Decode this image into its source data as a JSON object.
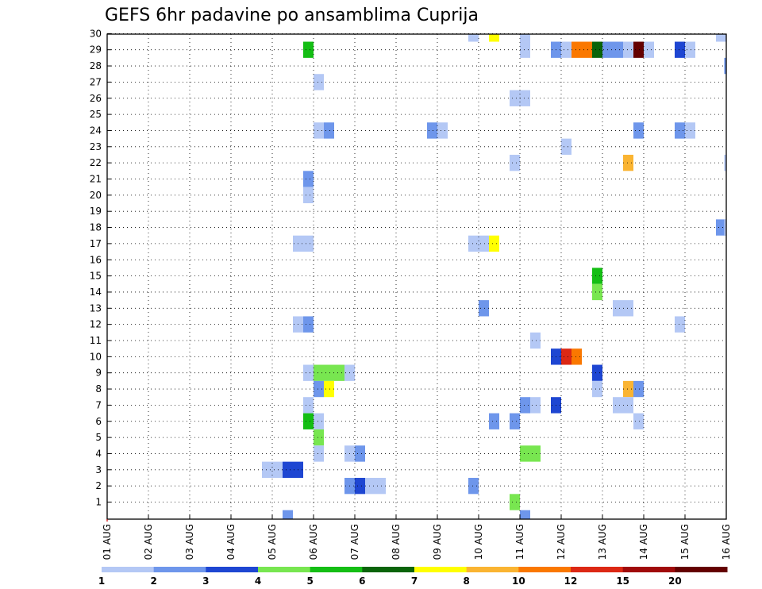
{
  "chart_data": {
    "type": "heatmap",
    "title": "GEFS 6hr padavine po ansamblima Cuprija",
    "x_tick_labels": [
      "01 AUG",
      "02 AUG",
      "03 AUG",
      "04 AUG",
      "05 AUG",
      "06 AUG",
      "07 AUG",
      "08 AUG",
      "09 AUG",
      "10 AUG",
      "11 AUG",
      "12 AUG",
      "13 AUG",
      "14 AUG",
      "15 AUG",
      "16 AUG"
    ],
    "y_tick_labels": [
      "1",
      "2",
      "3",
      "4",
      "5",
      "6",
      "7",
      "8",
      "9",
      "10",
      "11",
      "12",
      "13",
      "14",
      "15",
      "16",
      "17",
      "18",
      "19",
      "20",
      "21",
      "22",
      "23",
      "24",
      "25",
      "26",
      "27",
      "28",
      "29",
      "30"
    ],
    "xlim_days": [
      0,
      15
    ],
    "ylim": [
      0,
      30
    ],
    "grid": true,
    "time_step_hours": 6,
    "colorbar": {
      "levels": [
        "1",
        "2",
        "3",
        "4",
        "5",
        "6",
        "7",
        "8",
        "10",
        "12",
        "15",
        "20"
      ],
      "colors": [
        "#b4c8f5",
        "#6e96eb",
        "#1e46d2",
        "#78e650",
        "#14be14",
        "#0a640a",
        "#ffff00",
        "#fab432",
        "#fa7800",
        "#dc2814",
        "#a00a0a",
        "#640000"
      ]
    },
    "cells": [
      {
        "member": 30,
        "day": 8.75,
        "level": 0
      },
      {
        "member": 30,
        "day": 9.25,
        "level": 6
      },
      {
        "member": 30,
        "day": 10.0,
        "level": 0
      },
      {
        "member": 30,
        "day": 14.75,
        "level": 0
      },
      {
        "member": 29,
        "day": 4.75,
        "level": 4
      },
      {
        "member": 29,
        "day": 10.0,
        "level": 0
      },
      {
        "member": 29,
        "day": 10.75,
        "level": 1
      },
      {
        "member": 29,
        "day": 11.0,
        "level": 0
      },
      {
        "member": 29,
        "day": 11.25,
        "level": 8
      },
      {
        "member": 29,
        "day": 11.5,
        "level": 8
      },
      {
        "member": 29,
        "day": 11.75,
        "level": 5
      },
      {
        "member": 29,
        "day": 12.0,
        "level": 1
      },
      {
        "member": 29,
        "day": 12.25,
        "level": 1
      },
      {
        "member": 29,
        "day": 12.5,
        "level": 0
      },
      {
        "member": 29,
        "day": 12.75,
        "level": 11
      },
      {
        "member": 29,
        "day": 13.0,
        "level": 0
      },
      {
        "member": 29,
        "day": 13.75,
        "level": 2
      },
      {
        "member": 29,
        "day": 14.0,
        "level": 0
      },
      {
        "member": 28,
        "day": 14.95,
        "level": 1
      },
      {
        "member": 27,
        "day": 5.0,
        "level": 0
      },
      {
        "member": 26,
        "day": 9.75,
        "level": 0
      },
      {
        "member": 26,
        "day": 10.0,
        "level": 0
      },
      {
        "member": 24,
        "day": 5.0,
        "level": 0
      },
      {
        "member": 24,
        "day": 5.25,
        "level": 1
      },
      {
        "member": 24,
        "day": 7.75,
        "level": 1
      },
      {
        "member": 24,
        "day": 8.0,
        "level": 0
      },
      {
        "member": 24,
        "day": 12.75,
        "level": 1
      },
      {
        "member": 24,
        "day": 13.75,
        "level": 1
      },
      {
        "member": 24,
        "day": 14.0,
        "level": 0
      },
      {
        "member": 23,
        "day": 11.0,
        "level": 0
      },
      {
        "member": 22,
        "day": 9.75,
        "level": 0
      },
      {
        "member": 22,
        "day": 12.5,
        "level": 7
      },
      {
        "member": 22,
        "day": 14.95,
        "level": 0
      },
      {
        "member": 21,
        "day": 4.75,
        "level": 1
      },
      {
        "member": 20,
        "day": 4.75,
        "level": 0
      },
      {
        "member": 18,
        "day": 14.75,
        "level": 1
      },
      {
        "member": 18,
        "day": 14.95,
        "level": 0
      },
      {
        "member": 17,
        "day": 4.5,
        "level": 0
      },
      {
        "member": 17,
        "day": 4.75,
        "level": 0
      },
      {
        "member": 17,
        "day": 8.75,
        "level": 0
      },
      {
        "member": 17,
        "day": 9.0,
        "level": 0
      },
      {
        "member": 17,
        "day": 9.25,
        "level": 6
      },
      {
        "member": 15,
        "day": 11.75,
        "level": 4
      },
      {
        "member": 14,
        "day": 11.75,
        "level": 3
      },
      {
        "member": 13,
        "day": 9.0,
        "level": 1
      },
      {
        "member": 13,
        "day": 12.25,
        "level": 0
      },
      {
        "member": 13,
        "day": 12.5,
        "level": 0
      },
      {
        "member": 12,
        "day": 4.5,
        "level": 0
      },
      {
        "member": 12,
        "day": 4.75,
        "level": 1
      },
      {
        "member": 12,
        "day": 13.75,
        "level": 0
      },
      {
        "member": 11,
        "day": 10.25,
        "level": 0
      },
      {
        "member": 10,
        "day": 10.75,
        "level": 2
      },
      {
        "member": 10,
        "day": 11.0,
        "level": 9
      },
      {
        "member": 10,
        "day": 11.25,
        "level": 8
      },
      {
        "member": 9,
        "day": 4.75,
        "level": 0
      },
      {
        "member": 9,
        "day": 5.0,
        "level": 3
      },
      {
        "member": 9,
        "day": 5.25,
        "level": 3
      },
      {
        "member": 9,
        "day": 5.5,
        "level": 3
      },
      {
        "member": 9,
        "day": 5.75,
        "level": 0
      },
      {
        "member": 9,
        "day": 11.75,
        "level": 2
      },
      {
        "member": 8,
        "day": 5.0,
        "level": 1
      },
      {
        "member": 8,
        "day": 5.25,
        "level": 6
      },
      {
        "member": 8,
        "day": 11.75,
        "level": 0
      },
      {
        "member": 8,
        "day": 12.5,
        "level": 7
      },
      {
        "member": 8,
        "day": 12.75,
        "level": 1
      },
      {
        "member": 7,
        "day": 4.75,
        "level": 0
      },
      {
        "member": 7,
        "day": 10.0,
        "level": 1
      },
      {
        "member": 7,
        "day": 10.25,
        "level": 0
      },
      {
        "member": 7,
        "day": 10.75,
        "level": 2
      },
      {
        "member": 7,
        "day": 12.25,
        "level": 0
      },
      {
        "member": 7,
        "day": 12.5,
        "level": 0
      },
      {
        "member": 6,
        "day": 4.75,
        "level": 4
      },
      {
        "member": 6,
        "day": 5.0,
        "level": 0
      },
      {
        "member": 6,
        "day": 9.25,
        "level": 1
      },
      {
        "member": 6,
        "day": 9.75,
        "level": 1
      },
      {
        "member": 6,
        "day": 12.75,
        "level": 0
      },
      {
        "member": 5,
        "day": 5.0,
        "level": 3
      },
      {
        "member": 4,
        "day": 5.0,
        "level": 0
      },
      {
        "member": 4,
        "day": 5.75,
        "level": 0
      },
      {
        "member": 4,
        "day": 6.0,
        "level": 1
      },
      {
        "member": 4,
        "day": 10.0,
        "level": 3
      },
      {
        "member": 4,
        "day": 10.25,
        "level": 3
      },
      {
        "member": 3,
        "day": 3.75,
        "level": 0
      },
      {
        "member": 3,
        "day": 4.0,
        "level": 0
      },
      {
        "member": 3,
        "day": 4.25,
        "level": 2
      },
      {
        "member": 3,
        "day": 4.5,
        "level": 2
      },
      {
        "member": 2,
        "day": 5.75,
        "level": 1
      },
      {
        "member": 2,
        "day": 6.0,
        "level": 2
      },
      {
        "member": 2,
        "day": 6.25,
        "level": 0
      },
      {
        "member": 2,
        "day": 6.5,
        "level": 0
      },
      {
        "member": 2,
        "day": 8.75,
        "level": 1
      },
      {
        "member": 1,
        "day": 9.75,
        "level": 3
      },
      {
        "member": 0,
        "day": 4.25,
        "level": 1
      },
      {
        "member": 0,
        "day": 10.0,
        "level": 1
      }
    ]
  }
}
